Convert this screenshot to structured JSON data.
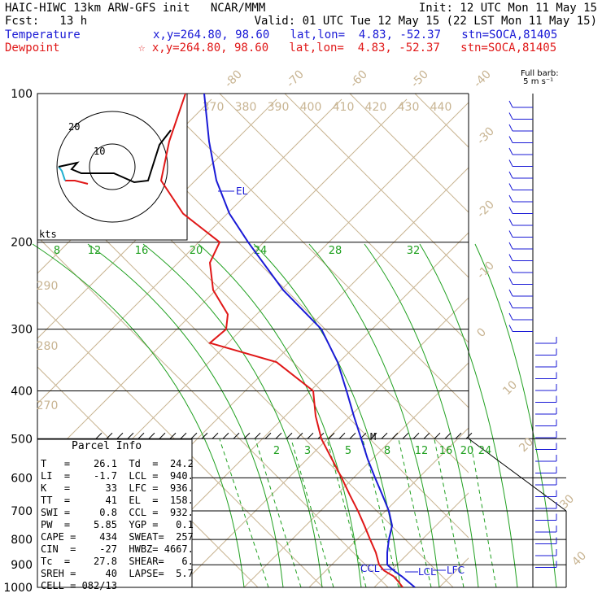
{
  "header": {
    "line1_left": "HAIC-HIWC 13km ARW-GFS init   NCAR/MMM",
    "line1_right": "Init: 12 UTC Mon 11 May 15",
    "line2_left": "Fcst:   13 h",
    "line2_right": "Valid: 01 UTC Tue 12 May 15 (22 LST Mon 11 May 15)",
    "temp_label": "Temperature",
    "temp_info": "x,y=264.80, 98.60   lat,lon=  4.83, -52.37   stn=SOCA,81405",
    "dew_label": "Dewpoint",
    "dew_info": "☆ x,y=264.80, 98.60   lat,lon=  4.83, -52.37   stn=SOCA,81405",
    "barb_note": "Full barb:\n 5 m s⁻¹"
  },
  "parcel": {
    "title": "Parcel  Info",
    "rows": [
      "T   =    26.1  Td  =  24.2",
      "LI  =    -1.7  LCL =  940.",
      "K   =      33  LFC =  936.",
      "TT  =      41  EL  =  158.",
      "SWI =     0.8  CCL =  932.",
      "PW  =    5.85  YGP =   0.1",
      "CAPE =    434  SWEAT=  257",
      "CIN  =    -27  HWBZ= 4667.",
      "Tc  =    27.8  SHEAR=   6.",
      "SREH =     40  LAPSE=  5.7",
      "CELL = 082/13"
    ]
  },
  "hodograph": {
    "units": "kts",
    "rings": [
      "10",
      "20"
    ]
  },
  "chart_data": {
    "type": "line",
    "title": "",
    "pressure_labels": [
      "100",
      "200",
      "300",
      "400",
      "500",
      "600",
      "700",
      "800",
      "900",
      "1000"
    ],
    "theta_e_labels": [
      "370",
      "380",
      "390",
      "400",
      "410",
      "420",
      "430",
      "440"
    ],
    "theta_labels": [
      "290",
      "280",
      "270"
    ],
    "temp_labels_top": [
      "-80",
      "-70",
      "-60",
      "-50",
      "-40"
    ],
    "temp_labels_right": [
      "-30",
      "-20",
      "-10",
      "0",
      "10",
      "20",
      "30",
      "40"
    ],
    "mixing_ratio_labels_upper": [
      "8",
      "12",
      "16",
      "20",
      "24",
      "28",
      "32"
    ],
    "mixing_ratio_labels_lower": [
      "2",
      "3",
      "5",
      "8",
      "12",
      "16",
      "20",
      "24"
    ],
    "levels_marked": [
      "EL",
      "CCL",
      "LCL",
      "LFC",
      "M"
    ],
    "series": [
      {
        "name": "Temperature",
        "color": "#1a1ad6",
        "pressure": [
          1000,
          950,
          925,
          900,
          850,
          800,
          750,
          700,
          650,
          600,
          550,
          500,
          450,
          400,
          350,
          300,
          250,
          200,
          175,
          150,
          125,
          100
        ],
        "x_screen_ref": [
          510,
          494,
          484,
          476,
          476,
          478,
          482,
          478,
          470,
          461,
          452,
          444,
          435,
          426,
          415,
          395,
          348,
          305,
          282,
          266,
          257,
          251
        ]
      },
      {
        "name": "Dewpoint",
        "color": "#e01818",
        "pressure": [
          1000,
          975,
          950,
          925,
          900,
          850,
          800,
          750,
          700,
          650,
          600,
          550,
          500,
          450,
          400,
          350,
          320,
          300,
          280,
          250,
          220,
          200,
          175,
          150,
          125,
          100
        ],
        "x_screen_ref": [
          495,
          490,
          484,
          472,
          466,
          462,
          455,
          448,
          440,
          430,
          420,
          408,
          395,
          388,
          385,
          340,
          258,
          278,
          280,
          262,
          258,
          270,
          225,
          198,
          208,
          228
        ]
      }
    ]
  }
}
